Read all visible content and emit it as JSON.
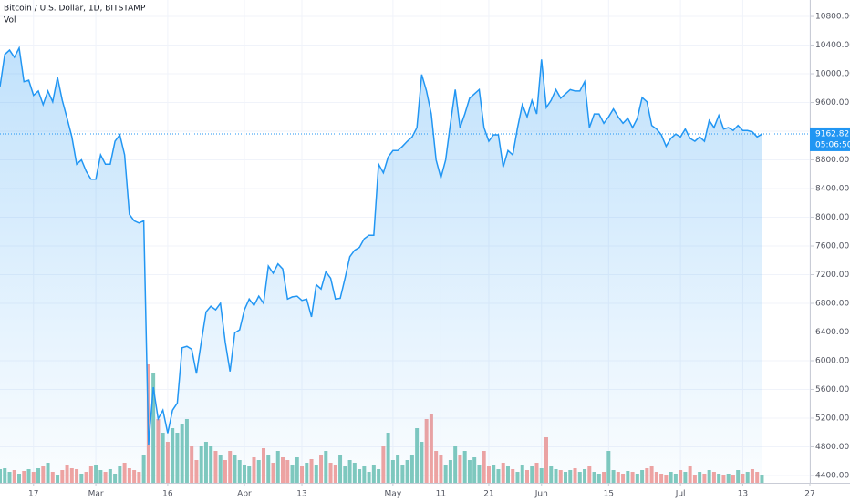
{
  "chart_data": {
    "type": "line",
    "title": "Bitcoin / U.S. Dollar, 1D, BITSTAMP",
    "volume_label": "Vol",
    "x": [
      0,
      1,
      2,
      3,
      4,
      5,
      6,
      7,
      8,
      9,
      10,
      11,
      12,
      13,
      14,
      15,
      16,
      17,
      18,
      19,
      20,
      21,
      22,
      23,
      24,
      25,
      26,
      27,
      28,
      29,
      30,
      31,
      32,
      33,
      34,
      35,
      36,
      37,
      38,
      39,
      40,
      41,
      42,
      43,
      44,
      45,
      46,
      47,
      48,
      49,
      50,
      51,
      52,
      53,
      54,
      55,
      56,
      57,
      58,
      59,
      60,
      61,
      62,
      63,
      64,
      65,
      66,
      67,
      68,
      69,
      70,
      71,
      72,
      73,
      74,
      75,
      76,
      77,
      78,
      79,
      80,
      81,
      82,
      83,
      84,
      85,
      86,
      87,
      88,
      89,
      90,
      91,
      92,
      93,
      94,
      95,
      96,
      97,
      98,
      99,
      100,
      101,
      102,
      103,
      104,
      105,
      106,
      107,
      108,
      109,
      110,
      111,
      112,
      113,
      114,
      115,
      116,
      117,
      118,
      119,
      120,
      121,
      122,
      123,
      124,
      125,
      126,
      127,
      128,
      129,
      130,
      131,
      132,
      133,
      134,
      135,
      136,
      137,
      138,
      139,
      140,
      141,
      142,
      143,
      144,
      145,
      146,
      147,
      148,
      149,
      150,
      151,
      152,
      153,
      154,
      155,
      156,
      157,
      158,
      159
    ],
    "price": {
      "color": "#2196f3",
      "values": [
        9820,
        10270,
        10330,
        10230,
        10360,
        9890,
        9910,
        9700,
        9760,
        9570,
        9760,
        9610,
        9950,
        9630,
        9380,
        9120,
        8740,
        8800,
        8640,
        8530,
        8530,
        8870,
        8740,
        8740,
        9060,
        9150,
        8870,
        8040,
        7950,
        7920,
        7950,
        4830,
        5630,
        5190,
        5310,
        4990,
        5310,
        5410,
        6180,
        6200,
        6160,
        5820,
        6260,
        6680,
        6760,
        6710,
        6800,
        6260,
        5850,
        6390,
        6430,
        6710,
        6860,
        6770,
        6900,
        6800,
        7320,
        7220,
        7350,
        7280,
        6860,
        6890,
        6900,
        6840,
        6860,
        6610,
        7060,
        7000,
        7240,
        7150,
        6860,
        6870,
        7150,
        7450,
        7540,
        7580,
        7700,
        7750,
        7750,
        8740,
        8620,
        8840,
        8930,
        8930,
        8990,
        9060,
        9120,
        9250,
        9990,
        9760,
        9440,
        8800,
        8550,
        8800,
        9310,
        9780,
        9250,
        9440,
        9660,
        9720,
        9780,
        9250,
        9060,
        9150,
        9150,
        8700,
        8930,
        8870,
        9250,
        9570,
        9400,
        9630,
        9440,
        10200,
        9530,
        9630,
        9780,
        9660,
        9720,
        9780,
        9760,
        9760,
        9890,
        9250,
        9440,
        9440,
        9310,
        9400,
        9510,
        9400,
        9310,
        9380,
        9250,
        9380,
        9670,
        9610,
        9280,
        9230,
        9150,
        8990,
        9100,
        9160,
        9120,
        9230,
        9100,
        9060,
        9120,
        9060,
        9350,
        9250,
        9420,
        9230,
        9250,
        9210,
        9280,
        9210,
        9210,
        9190,
        9120,
        9160
      ]
    },
    "volume": {
      "up_color": "#80c9bd",
      "down_color": "#f2a3a0",
      "ylim": [
        0,
        140
      ],
      "values": [
        15,
        16,
        12,
        14,
        10,
        13,
        15,
        12,
        16,
        18,
        22,
        12,
        8,
        14,
        20,
        16,
        15,
        10,
        12,
        18,
        20,
        14,
        12,
        15,
        10,
        18,
        22,
        16,
        14,
        12,
        30,
        130,
        120,
        70,
        55,
        45,
        60,
        55,
        65,
        70,
        40,
        25,
        40,
        45,
        40,
        35,
        30,
        25,
        35,
        30,
        25,
        20,
        18,
        28,
        25,
        38,
        30,
        22,
        35,
        28,
        25,
        20,
        28,
        18,
        22,
        26,
        20,
        30,
        35,
        22,
        20,
        30,
        18,
        25,
        22,
        15,
        18,
        12,
        20,
        15,
        40,
        55,
        25,
        30,
        20,
        25,
        30,
        60,
        45,
        70,
        75,
        35,
        30,
        20,
        25,
        40,
        30,
        35,
        25,
        28,
        20,
        35,
        18,
        20,
        15,
        22,
        18,
        15,
        12,
        20,
        14,
        18,
        22,
        16,
        50,
        18,
        15,
        14,
        12,
        14,
        16,
        12,
        15,
        18,
        12,
        10,
        12,
        35,
        14,
        12,
        10,
        13,
        12,
        10,
        14,
        16,
        18,
        12,
        10,
        8,
        12,
        10,
        14,
        12,
        18,
        8,
        12,
        10,
        14,
        12,
        10,
        8,
        10,
        8,
        14,
        10,
        12,
        15,
        12,
        8
      ]
    },
    "last_price": 9162.82,
    "countdown": "05:06:50",
    "xlim": [
      0,
      169
    ],
    "xticks": [
      {
        "value": 7,
        "label": "17"
      },
      {
        "value": 20,
        "label": "Mar"
      },
      {
        "value": 35,
        "label": "16"
      },
      {
        "value": 51,
        "label": "Apr"
      },
      {
        "value": 63,
        "label": "13"
      },
      {
        "value": 82,
        "label": "May"
      },
      {
        "value": 92,
        "label": "11"
      },
      {
        "value": 102,
        "label": "21"
      },
      {
        "value": 113,
        "label": "Jun"
      },
      {
        "value": 127,
        "label": "15"
      },
      {
        "value": 142,
        "label": "Jul"
      },
      {
        "value": 155,
        "label": "13"
      },
      {
        "value": 169,
        "label": "27"
      }
    ],
    "ylim": [
      4298,
      11029
    ],
    "yticks": [
      {
        "value": 4400,
        "label": "4400.00"
      },
      {
        "value": 4800,
        "label": "4800.00"
      },
      {
        "value": 5200,
        "label": "5200.00"
      },
      {
        "value": 5600,
        "label": "5600.00"
      },
      {
        "value": 6000,
        "label": "6000.00"
      },
      {
        "value": 6400,
        "label": "6400.00"
      },
      {
        "value": 6800,
        "label": "6800.00"
      },
      {
        "value": 7200,
        "label": "7200.00"
      },
      {
        "value": 7600,
        "label": "7600.00"
      },
      {
        "value": 8000,
        "label": "8000.00"
      },
      {
        "value": 8400,
        "label": "8400.00"
      },
      {
        "value": 8800,
        "label": "8800.00"
      },
      {
        "value": 9200,
        "label": "9200.00"
      },
      {
        "value": 9600,
        "label": "9600.00"
      },
      {
        "value": 10000,
        "label": "10000.00"
      },
      {
        "value": 10400,
        "label": "10400.00"
      },
      {
        "value": 10800,
        "label": "10800.00"
      }
    ],
    "grid": true
  }
}
